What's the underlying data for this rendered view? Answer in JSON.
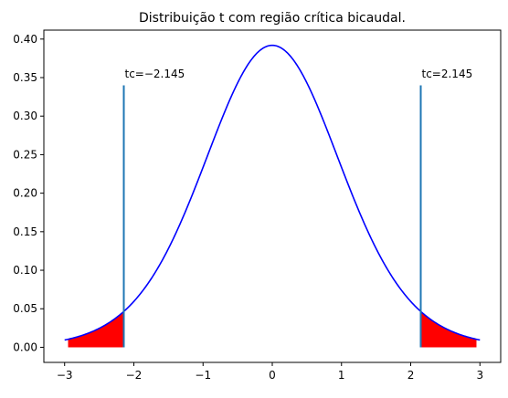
{
  "chart_data": {
    "type": "line",
    "title": "Distribuição t com região crítica bicaudal.",
    "xlabel": "",
    "ylabel": "",
    "xlim": [
      -3.3,
      3.3
    ],
    "ylim": [
      -0.0196,
      0.4116
    ],
    "grid": false,
    "x_ticks": [
      -3,
      -2,
      -1,
      0,
      1,
      2,
      3
    ],
    "x_tick_labels": [
      "−3",
      "−2",
      "−1",
      "0",
      "1",
      "2",
      "3"
    ],
    "y_ticks": [
      0.0,
      0.05,
      0.1,
      0.15,
      0.2,
      0.25,
      0.3,
      0.35,
      0.4
    ],
    "y_tick_labels": [
      "0.00",
      "0.05",
      "0.10",
      "0.15",
      "0.20",
      "0.25",
      "0.30",
      "0.35",
      "0.40"
    ],
    "series": [
      {
        "kind": "pdf",
        "degrees_of_freedom": 14,
        "x_range": [
          -3,
          3
        ],
        "color": "#0000ff"
      }
    ],
    "critical_value": 2.145,
    "critical_lines": [
      {
        "x": -2.145,
        "ymin": 0,
        "ymax": 0.34,
        "color": "#1f77b4"
      },
      {
        "x": 2.145,
        "ymin": 0,
        "ymax": 0.34,
        "color": "#1f77b4"
      }
    ],
    "shaded_regions": [
      {
        "from": -2.95,
        "to": -2.145,
        "color": "#ff0000"
      },
      {
        "from": 2.145,
        "to": 2.95,
        "color": "#ff0000"
      }
    ],
    "annotations": [
      {
        "text": "tc=−2.145",
        "x": -2.145,
        "y": 0.35
      },
      {
        "text": "tc=2.145",
        "x": 2.145,
        "y": 0.35
      }
    ]
  }
}
